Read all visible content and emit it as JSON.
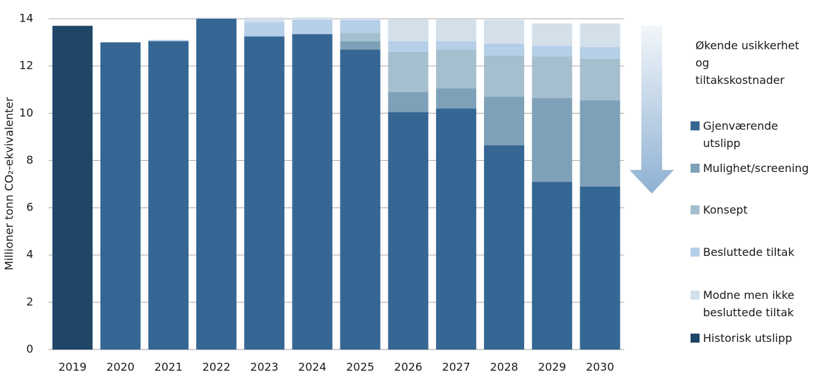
{
  "chart_data": {
    "type": "stacked_bar",
    "y_label": "Millioner tonn CO₂-ekvivalenter",
    "legend_note": "Økende usikkerhet og tiltakskostnader",
    "categories": [
      "2019",
      "2020",
      "2021",
      "2022",
      "2023",
      "2024",
      "2025",
      "2026",
      "2027",
      "2028",
      "2029",
      "2030"
    ],
    "series": [
      {
        "name": "Historisk utslipp",
        "color": "#1f4567",
        "values": [
          13.7,
          null,
          null,
          null,
          null,
          null,
          null,
          null,
          null,
          null,
          null,
          null
        ]
      },
      {
        "name": "Gjenværende utslipp",
        "color": "#366693",
        "values": [
          null,
          13.0,
          13.05,
          14.0,
          13.25,
          13.35,
          12.7,
          10.05,
          10.2,
          8.65,
          7.1,
          6.9
        ]
      },
      {
        "name": "Mulighet/screening",
        "color": "#7ea1b9",
        "values": [
          null,
          null,
          null,
          null,
          null,
          null,
          0.35,
          0.85,
          0.85,
          2.05,
          3.55,
          3.65
        ]
      },
      {
        "name": "Konsept",
        "color": "#a5bfcf",
        "values": [
          null,
          null,
          null,
          null,
          null,
          null,
          0.35,
          1.7,
          1.65,
          1.75,
          1.75,
          1.75
        ]
      },
      {
        "name": "Besluttede tiltak",
        "color": "#b5cfe9",
        "values": [
          null,
          null,
          0.05,
          null,
          0.6,
          0.6,
          0.55,
          0.45,
          0.35,
          0.5,
          0.45,
          0.5
        ]
      },
      {
        "name": "Modne men ikke besluttede tiltak",
        "color": "#d3dfe9",
        "values": [
          null,
          null,
          null,
          0.05,
          0.2,
          0.1,
          0.05,
          0.95,
          0.95,
          1.0,
          0.95,
          1.0
        ]
      }
    ],
    "ylim": [
      0,
      14
    ],
    "yticks": [
      0,
      2,
      4,
      6,
      8,
      10,
      12,
      14
    ],
    "grid": true
  }
}
